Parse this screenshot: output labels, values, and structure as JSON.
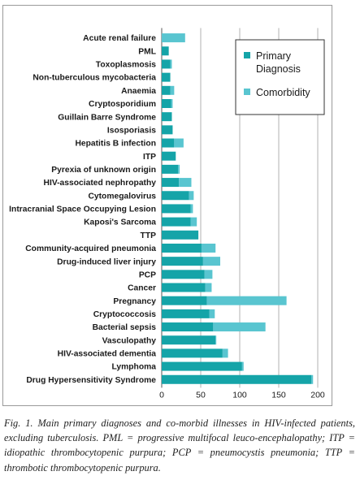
{
  "chart_data": {
    "type": "bar",
    "orientation": "horizontal",
    "stacked": true,
    "categories": [
      "Acute renal failure",
      "PML",
      "Toxoplasmosis",
      "Non-tuberculous mycobacteria",
      "Anaemia",
      "Cryptosporidium",
      "Guillain Barre Syndrome",
      "Isosporiasis",
      "Hepatitis B infection",
      "ITP",
      "Pyrexia of unknown origin",
      "HIV-associated nephropathy",
      "Cytomegalovirus",
      "Intracranial Space Occupying Lesion",
      "Kaposi's Sarcoma",
      "TTP",
      "Community-acquired pneumonia",
      "Drug-induced liver injury",
      "PCP",
      "Cancer",
      "Pregnancy",
      "Cryptococcosis",
      "Bacterial sepsis",
      "Vasculopathy",
      "HIV-associated dementia",
      "Lymphoma",
      "Drug Hypersensitivity Syndrome"
    ],
    "series": [
      {
        "name": "Primary Diagnosis",
        "color": "#15a4a8",
        "values": [
          0,
          9,
          11,
          11,
          11,
          12,
          13,
          14,
          16,
          18,
          21,
          22,
          35,
          37,
          37,
          47,
          51,
          53,
          55,
          56,
          58,
          61,
          66,
          69,
          78,
          103,
          192
        ]
      },
      {
        "name": "Comorbidity",
        "color": "#59c5d0",
        "values": [
          30,
          0,
          2,
          0,
          5,
          2,
          0,
          0,
          12,
          0,
          2,
          16,
          6,
          3,
          8,
          0,
          18,
          22,
          10,
          8,
          102,
          7,
          67,
          1,
          7,
          2,
          2
        ]
      }
    ],
    "xlim": [
      0,
      200
    ],
    "xticks": [
      0,
      50,
      100,
      150,
      200
    ],
    "grid": "vertical",
    "legend_position": "top-right"
  },
  "caption": "Fig. 1. Main primary diagnoses and co-morbid illnesses in HIV-infected patients, excluding tuberculosis. PML = progressive multifocal leuco-encephalopathy; ITP = idiopathic thrombocytopenic purpura; PCP = pneumocystis pneumonia; TTP = thrombotic thrombocytopenic purpura."
}
